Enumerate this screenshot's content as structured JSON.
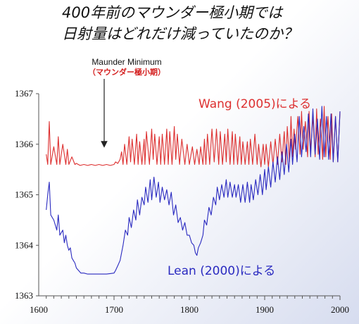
{
  "title": {
    "line1": "400年前のマウンダー極小期では",
    "line2": "日射量はどれだけ減っていたのか？"
  },
  "annotation": {
    "english": "Maunder Minimum",
    "japanese": "（マウンダー極小期）"
  },
  "colors": {
    "wang": "#dd3030",
    "lean": "#2a2ac0",
    "axis": "#555555",
    "arrow": "#222222"
  },
  "chart_data": {
    "type": "line",
    "title": "",
    "xlabel": "",
    "ylabel": "",
    "xlim": [
      1610,
      2000
    ],
    "ylim": [
      1363,
      1367
    ],
    "x_ticks": [
      "1600",
      "1700",
      "1800",
      "1900",
      "2000"
    ],
    "y_ticks": [
      "1363",
      "1364",
      "1365",
      "1366",
      "1367"
    ],
    "series": [
      {
        "name": "Wang (2005)による",
        "color": "#dd3030",
        "x": [
          1610,
          1612,
          1614,
          1616,
          1620,
          1624,
          1626,
          1628,
          1632,
          1636,
          1638,
          1640,
          1644,
          1648,
          1650,
          1655,
          1660,
          1665,
          1670,
          1675,
          1680,
          1685,
          1690,
          1695,
          1700,
          1702,
          1705,
          1708,
          1710,
          1712,
          1714,
          1717,
          1720,
          1722,
          1724,
          1727,
          1730,
          1732,
          1734,
          1737,
          1740,
          1741,
          1743,
          1747,
          1750,
          1752,
          1754,
          1757,
          1760,
          1762,
          1764,
          1767,
          1770,
          1772,
          1774,
          1777,
          1780,
          1782,
          1784,
          1787,
          1790,
          1794,
          1797,
          1800,
          1804,
          1807,
          1810,
          1813,
          1815,
          1818,
          1820,
          1822,
          1824,
          1827,
          1830,
          1833,
          1836,
          1839,
          1841,
          1844,
          1847,
          1849,
          1851,
          1854,
          1857,
          1859,
          1861,
          1864,
          1867,
          1869,
          1871,
          1874,
          1877,
          1879,
          1881,
          1884,
          1887,
          1890,
          1892,
          1895,
          1898,
          1900,
          1902,
          1905,
          1908,
          1911,
          1914,
          1917,
          1920,
          1923,
          1926,
          1928,
          1930,
          1933,
          1935,
          1937,
          1939,
          1941,
          1944,
          1947,
          1949,
          1951,
          1954,
          1957,
          1959,
          1961,
          1964,
          1967,
          1969,
          1971,
          1974,
          1977,
          1979,
          1981,
          1984,
          1987,
          1989,
          1991,
          1994,
          1997,
          2000
        ],
        "y": [
          1365.8,
          1365.6,
          1366.45,
          1365.6,
          1365.95,
          1365.6,
          1366.15,
          1365.6,
          1366.0,
          1365.6,
          1365.9,
          1365.6,
          1365.75,
          1365.6,
          1365.62,
          1365.58,
          1365.6,
          1365.58,
          1365.6,
          1365.58,
          1365.6,
          1365.58,
          1365.6,
          1365.58,
          1365.6,
          1365.65,
          1365.62,
          1365.7,
          1365.85,
          1365.6,
          1366.0,
          1365.6,
          1366.15,
          1365.65,
          1366.1,
          1365.6,
          1366.2,
          1365.6,
          1366.05,
          1365.6,
          1366.1,
          1365.6,
          1366.25,
          1365.6,
          1366.3,
          1365.7,
          1366.2,
          1365.6,
          1366.15,
          1365.6,
          1366.2,
          1365.6,
          1366.3,
          1365.6,
          1366.25,
          1365.6,
          1366.35,
          1365.7,
          1366.2,
          1365.6,
          1366.1,
          1365.6,
          1366.0,
          1365.6,
          1365.95,
          1365.6,
          1365.9,
          1365.6,
          1365.95,
          1365.6,
          1366.1,
          1365.6,
          1366.2,
          1365.6,
          1366.3,
          1365.65,
          1366.3,
          1365.6,
          1366.25,
          1365.6,
          1366.2,
          1365.65,
          1366.3,
          1365.6,
          1366.25,
          1365.6,
          1366.2,
          1365.6,
          1366.15,
          1365.6,
          1366.05,
          1365.6,
          1366.05,
          1365.6,
          1366.1,
          1365.6,
          1366.2,
          1365.6,
          1366.0,
          1365.55,
          1366.0,
          1365.6,
          1366.0,
          1365.55,
          1366.05,
          1365.6,
          1366.1,
          1365.6,
          1366.2,
          1365.65,
          1366.25,
          1365.6,
          1366.35,
          1365.65,
          1366.55,
          1365.75,
          1366.3,
          1365.9,
          1366.55,
          1365.8,
          1366.65,
          1365.9,
          1366.45,
          1365.75,
          1366.65,
          1365.85,
          1366.55,
          1365.75,
          1366.7,
          1365.8,
          1366.5,
          1365.7,
          1366.75,
          1365.75,
          1366.55,
          1365.7,
          1366.6,
          1365.65,
          1366.55,
          1365.65,
          1366.65
        ]
      },
      {
        "name": "Lean (2000)による",
        "color": "#2a2ac0",
        "x": [
          1610,
          1612,
          1614,
          1616,
          1620,
          1624,
          1626,
          1628,
          1632,
          1634,
          1636,
          1638,
          1640,
          1642,
          1644,
          1646,
          1648,
          1650,
          1653,
          1656,
          1660,
          1665,
          1670,
          1675,
          1680,
          1685,
          1690,
          1695,
          1700,
          1702,
          1705,
          1708,
          1710,
          1712,
          1715,
          1718,
          1720,
          1723,
          1726,
          1729,
          1731,
          1734,
          1737,
          1740,
          1742,
          1745,
          1748,
          1750,
          1753,
          1756,
          1759,
          1761,
          1764,
          1767,
          1770,
          1773,
          1776,
          1779,
          1782,
          1785,
          1788,
          1791,
          1794,
          1797,
          1800,
          1803,
          1806,
          1808,
          1810,
          1812,
          1815,
          1818,
          1820,
          1823,
          1826,
          1829,
          1832,
          1835,
          1837,
          1840,
          1843,
          1846,
          1849,
          1851,
          1854,
          1857,
          1860,
          1862,
          1865,
          1868,
          1871,
          1874,
          1877,
          1880,
          1882,
          1885,
          1888,
          1891,
          1894,
          1897,
          1900,
          1902,
          1905,
          1908,
          1911,
          1914,
          1917,
          1920,
          1923,
          1926,
          1929,
          1932,
          1935,
          1937,
          1940,
          1943,
          1946,
          1949,
          1952,
          1955,
          1958,
          1961,
          1964,
          1967,
          1970,
          1973,
          1976,
          1979,
          1982,
          1985,
          1988,
          1991,
          1994,
          1997,
          2000
        ],
        "y": [
          1364.7,
          1365.0,
          1365.25,
          1364.6,
          1364.5,
          1364.3,
          1364.6,
          1364.2,
          1364.3,
          1364.05,
          1364.2,
          1364.0,
          1363.9,
          1363.95,
          1363.75,
          1363.7,
          1363.65,
          1363.55,
          1363.5,
          1363.45,
          1363.45,
          1363.43,
          1363.43,
          1363.43,
          1363.43,
          1363.43,
          1363.43,
          1363.44,
          1363.45,
          1363.5,
          1363.6,
          1363.7,
          1363.85,
          1364.0,
          1364.3,
          1364.2,
          1364.55,
          1364.35,
          1364.7,
          1364.5,
          1364.9,
          1364.6,
          1364.95,
          1364.8,
          1365.15,
          1364.85,
          1365.3,
          1364.9,
          1365.35,
          1364.95,
          1365.25,
          1364.85,
          1365.15,
          1364.9,
          1365.1,
          1364.8,
          1365.05,
          1364.6,
          1364.8,
          1364.45,
          1364.55,
          1364.3,
          1364.45,
          1364.2,
          1364.2,
          1364.05,
          1364.0,
          1363.85,
          1363.8,
          1363.95,
          1364.05,
          1364.2,
          1364.5,
          1364.4,
          1364.75,
          1364.6,
          1364.95,
          1364.8,
          1365.15,
          1364.9,
          1365.2,
          1364.95,
          1365.3,
          1364.95,
          1365.25,
          1364.95,
          1365.2,
          1364.95,
          1365.2,
          1364.85,
          1365.2,
          1364.85,
          1365.25,
          1364.85,
          1365.2,
          1364.9,
          1365.3,
          1365.0,
          1365.4,
          1365.0,
          1365.5,
          1365.1,
          1365.55,
          1365.15,
          1365.65,
          1365.25,
          1365.75,
          1365.3,
          1365.85,
          1365.4,
          1366.0,
          1365.45,
          1366.1,
          1365.6,
          1366.2,
          1365.65,
          1366.55,
          1365.75,
          1366.35,
          1365.85,
          1366.6,
          1365.75,
          1366.7,
          1365.8,
          1366.5,
          1365.7,
          1366.75,
          1365.75,
          1366.55,
          1365.7,
          1366.6,
          1365.65,
          1366.55,
          1365.65,
          1366.65
        ]
      }
    ]
  }
}
